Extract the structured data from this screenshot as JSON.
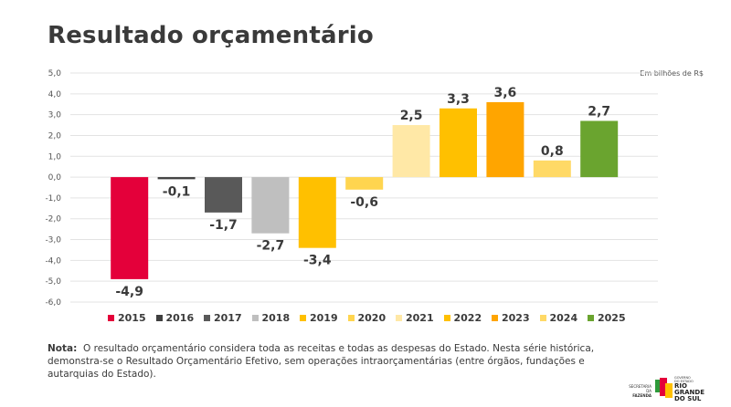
{
  "title": "Resultado orçamentário",
  "unit_note": "Em bilhões de R$",
  "chart_data": {
    "type": "bar",
    "title": "Resultado orçamentário",
    "xlabel": "",
    "ylabel": "Em bilhões de R$",
    "ylim": [
      -6.0,
      5.0
    ],
    "yticks": [
      5.0,
      4.0,
      3.0,
      2.0,
      1.0,
      0.0,
      -1.0,
      -2.0,
      -3.0,
      -4.0,
      -5.0,
      -6.0
    ],
    "ytick_labels": [
      "5,0",
      "4,0",
      "3,0",
      "2,0",
      "1,0",
      "0,0",
      "-1,0",
      "-2,0",
      "-3,0",
      "-4,0",
      "-5,0",
      "-6,0"
    ],
    "grid": true,
    "legend_position": "bottom",
    "categories": [
      "2015",
      "2016",
      "2017",
      "2018",
      "2019",
      "2020",
      "2021",
      "2022",
      "2023",
      "2024",
      "2025"
    ],
    "values": [
      -4.9,
      -0.1,
      -1.7,
      -2.7,
      -3.4,
      -0.6,
      2.5,
      3.3,
      3.6,
      0.8,
      2.7
    ],
    "value_labels": [
      "-4,9",
      "-0,1",
      "-1,7",
      "-2,7",
      "-3,4",
      "-0,6",
      "2,5",
      "3,3",
      "3,6",
      "0,8",
      "2,7"
    ],
    "colors": [
      "#e4003a",
      "#3f3f3f",
      "#595959",
      "#bfbfbf",
      "#ffc000",
      "#ffd54f",
      "#ffe8a6",
      "#ffc000",
      "#ffa500",
      "#ffd966",
      "#6aa42f"
    ]
  },
  "note": {
    "label": "Nota:",
    "text": "O resultado orçamentário considera toda as receitas e todas as despesas do Estado. Nesta série histórica, demonstra-se o Resultado Orçamentário Efetivo, sem operações intraorçamentárias (entre órgãos, fundações e autarquias do Estado)."
  },
  "logo": {
    "secretaria_line1": "SECRETARIA DA",
    "secretaria_line2": "FAZENDA",
    "governo_line1": "GOVERNO",
    "governo_line2": "DO ESTADO",
    "state_line1": "RIO",
    "state_line2": "GRANDE",
    "state_line3": "DO SUL"
  }
}
